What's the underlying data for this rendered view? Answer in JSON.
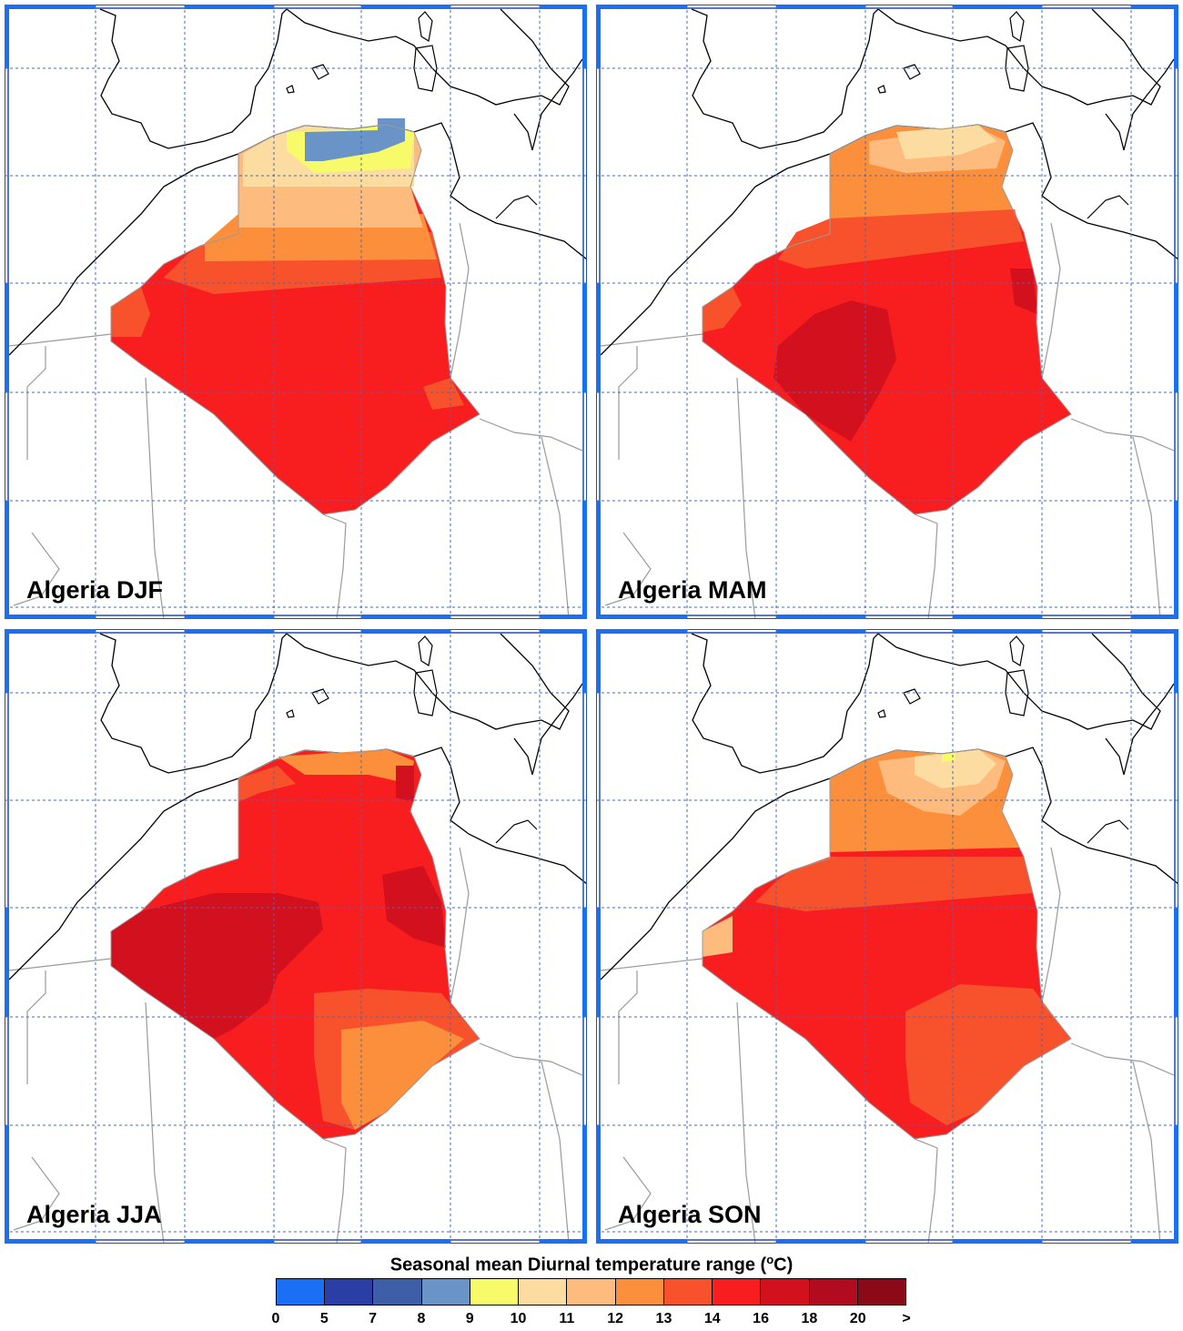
{
  "panels": [
    {
      "label": "Algeria DJF",
      "season": "DJF"
    },
    {
      "label": "Algeria MAM",
      "season": "MAM"
    },
    {
      "label": "Algeria JJA",
      "season": "JJA"
    },
    {
      "label": "Algeria SON",
      "season": "SON"
    }
  ],
  "legend": {
    "title": "Seasonal mean Diurnal temperature range (",
    "title_deg": "o",
    "title_unit": "C)",
    "ticks": [
      "0",
      "5",
      "7",
      "8",
      "9",
      "10",
      "11",
      "12",
      "13",
      "14",
      "16",
      "18",
      "20",
      ">"
    ],
    "colors": [
      "#1a6ff5",
      "#2a3ea6",
      "#3f5ea8",
      "#6a93c8",
      "#f7fb6a",
      "#fcdca0",
      "#fdbb7d",
      "#fb8f3c",
      "#f8522d",
      "#f81e1f",
      "#d2101e",
      "#b20a1e",
      "#8c0a18"
    ]
  }
}
